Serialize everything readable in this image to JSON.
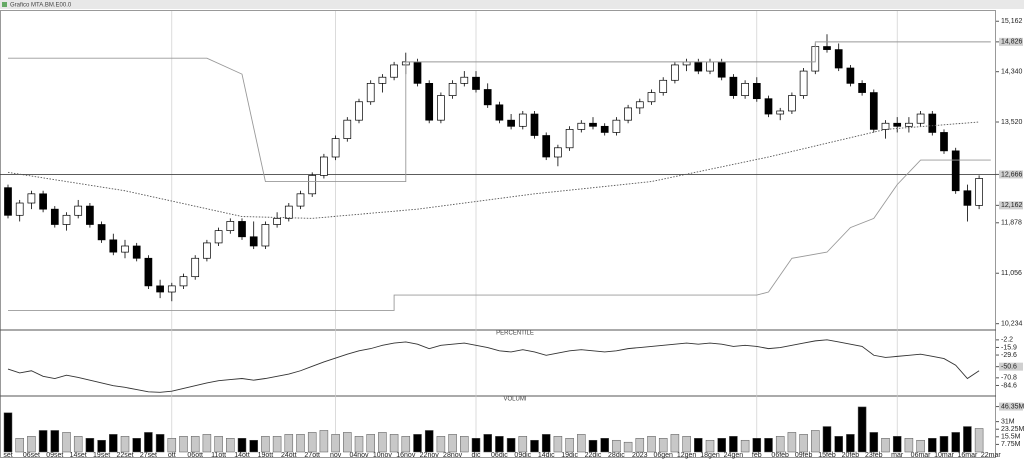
{
  "window": {
    "title": "Grafico MTA.BM.E00.0"
  },
  "chart_data": [
    {
      "type": "candlestick",
      "categories": [
        "set",
        null,
        "06set",
        null,
        "09set",
        null,
        "14set",
        null,
        "19set",
        null,
        "22set",
        null,
        "27set",
        null,
        "ott",
        null,
        "06ott",
        null,
        "11ott",
        null,
        "14ott",
        null,
        "19ott",
        null,
        "24ott",
        null,
        "27ott",
        null,
        "nov",
        null,
        "04nov",
        null,
        "10nov",
        null,
        "16nov",
        null,
        "22nov",
        null,
        "28nov",
        null,
        "dic",
        null,
        "06dic",
        null,
        "09dic",
        null,
        "14dic",
        null,
        "19dic",
        null,
        "22dic",
        null,
        "28dic",
        null,
        "2023",
        null,
        "06gen",
        null,
        "12gen",
        null,
        "18gen",
        null,
        "24gen",
        null,
        "feb",
        null,
        "06feb",
        null,
        "09feb",
        null,
        "15feb",
        null,
        "20feb",
        null,
        "23feb",
        null,
        "mar",
        null,
        "06mar",
        null,
        "10mar",
        null,
        "16mar",
        null,
        "22mar"
      ],
      "open": [
        12450,
        12000,
        12200,
        12350,
        12100,
        11850,
        12000,
        12150,
        11850,
        11600,
        11400,
        11500,
        11300,
        10850,
        10750,
        10850,
        11000,
        11300,
        11550,
        11750,
        11900,
        11650,
        11500,
        11850,
        11950,
        12150,
        12350,
        12650,
        12950,
        13250,
        13550,
        13850,
        14150,
        14250,
        14450,
        14500,
        14150,
        13550,
        13950,
        14150,
        14250,
        14050,
        13800,
        13550,
        13450,
        13650,
        13300,
        12950,
        13100,
        13400,
        13500,
        13450,
        13350,
        13550,
        13750,
        13850,
        14000,
        14200,
        14450,
        14500,
        14350,
        14500,
        14250,
        13950,
        14150,
        13900,
        13650,
        13700,
        13950,
        14350,
        14750,
        14700,
        14400,
        14150,
        14000,
        13400,
        13500,
        13450,
        13500,
        13650,
        13350,
        13050,
        12400,
        12162,
        null
      ],
      "high": [
        12500,
        12250,
        12400,
        12400,
        12150,
        12050,
        12250,
        12200,
        11900,
        11700,
        11600,
        11550,
        11350,
        10950,
        10900,
        11050,
        11350,
        11600,
        11800,
        11950,
        11950,
        11900,
        11900,
        12050,
        12200,
        12400,
        12700,
        13000,
        13300,
        13600,
        13900,
        14200,
        14300,
        14500,
        14650,
        14550,
        14200,
        14000,
        14200,
        14350,
        14350,
        14150,
        13850,
        13650,
        13700,
        13700,
        13350,
        13150,
        13450,
        13550,
        13600,
        13500,
        13600,
        13800,
        13900,
        14050,
        14250,
        14500,
        14550,
        14550,
        14550,
        14550,
        14300,
        14200,
        14250,
        13950,
        13750,
        14000,
        14400,
        14800,
        14950,
        14800,
        14450,
        14200,
        14050,
        13550,
        13600,
        13600,
        13700,
        13700,
        13400,
        13100,
        12500,
        12650,
        null
      ],
      "low": [
        11950,
        11900,
        12100,
        12050,
        11800,
        11750,
        11950,
        11800,
        11550,
        11350,
        11300,
        11250,
        10800,
        10650,
        10600,
        10800,
        10950,
        11250,
        11500,
        11700,
        11600,
        11450,
        11450,
        11800,
        11900,
        12100,
        12300,
        12600,
        12900,
        13200,
        13500,
        13800,
        14000,
        14200,
        14300,
        14100,
        13500,
        13500,
        13900,
        14100,
        14000,
        13750,
        13500,
        13400,
        13400,
        13250,
        12900,
        12800,
        13050,
        13350,
        13400,
        13300,
        13300,
        13500,
        13650,
        13800,
        13950,
        14150,
        14350,
        14300,
        14300,
        14200,
        13900,
        13900,
        13850,
        13600,
        13550,
        13650,
        13900,
        14300,
        14650,
        14350,
        14100,
        13950,
        13350,
        13250,
        13350,
        13350,
        13450,
        13300,
        13000,
        12350,
        11900,
        12100,
        null
      ],
      "close": [
        12000,
        12200,
        12350,
        12100,
        11850,
        12000,
        12150,
        11850,
        11600,
        11400,
        11500,
        11300,
        10850,
        10750,
        10850,
        11000,
        11300,
        11550,
        11750,
        11900,
        11650,
        11500,
        11850,
        11950,
        12150,
        12350,
        12650,
        12950,
        13250,
        13550,
        13850,
        14150,
        14250,
        14450,
        14500,
        14150,
        13550,
        13950,
        14150,
        14250,
        14050,
        13800,
        13550,
        13450,
        13650,
        13300,
        12950,
        13100,
        13400,
        13500,
        13450,
        13350,
        13550,
        13750,
        13850,
        14000,
        14200,
        14450,
        14500,
        14350,
        14500,
        14250,
        13950,
        14150,
        13900,
        13650,
        13700,
        13950,
        14350,
        14750,
        14700,
        14400,
        14150,
        14000,
        13400,
        13500,
        13450,
        13500,
        13650,
        13350,
        13050,
        12400,
        12162,
        12600,
        null
      ],
      "up_color": "#ffffff",
      "down_color": "#000000",
      "lines": [
        {
          "x": [
            0,
            10,
            20,
            26,
            35,
            45,
            55,
            65,
            75,
            83
          ],
          "values": [
            12700,
            12400,
            11980,
            11950,
            12100,
            12350,
            12550,
            12950,
            13400,
            13520
          ],
          "color": "#555555",
          "style": "dotted"
        },
        {
          "x": [
            0,
            17,
            20,
            22,
            24,
            24,
            34,
            34,
            69,
            69,
            84
          ],
          "values": [
            14560,
            14560,
            14300,
            12550,
            12550,
            12550,
            12550,
            14500,
            14500,
            14826,
            14826
          ],
          "color": "#999999",
          "style": "solid"
        },
        {
          "x": [
            0,
            33,
            33,
            64,
            65,
            67,
            70,
            72,
            74,
            76,
            78,
            84
          ],
          "values": [
            10450,
            10450,
            10700,
            10700,
            10750,
            11300,
            11400,
            11800,
            11950,
            12500,
            12900,
            12900
          ],
          "color": "#999999",
          "style": "solid"
        }
      ],
      "ylim": [
        10180,
        15280
      ],
      "yticks": [
        {
          "value": 15162,
          "label": "15,162"
        },
        {
          "value": 14826,
          "label": "14,826",
          "boxed": true
        },
        {
          "value": 14340,
          "label": "14,340"
        },
        {
          "value": 13520,
          "label": "13,520"
        },
        {
          "value": 12666,
          "label": "12,666",
          "boxed": true,
          "line": true
        },
        {
          "value": 12162,
          "label": "12,162",
          "boxed": true
        },
        {
          "value": 11878,
          "label": "11,878"
        },
        {
          "value": 11056,
          "label": "11,056"
        },
        {
          "value": 10234,
          "label": "10,234"
        }
      ]
    },
    {
      "type": "line",
      "title": "PERCENTILE",
      "color": "#333333",
      "values": [
        -55,
        -62,
        -58,
        -68,
        -72,
        -66,
        -70,
        -75,
        -80,
        -85,
        -88,
        -92,
        -96,
        -97,
        -95,
        -90,
        -85,
        -80,
        -76,
        -74,
        -72,
        -75,
        -72,
        -68,
        -64,
        -58,
        -50,
        -42,
        -35,
        -28,
        -22,
        -18,
        -12,
        -8,
        -6,
        -10,
        -18,
        -12,
        -10,
        -8,
        -12,
        -16,
        -22,
        -24,
        -20,
        -24,
        -30,
        -26,
        -22,
        -20,
        -22,
        -24,
        -22,
        -18,
        -16,
        -14,
        -12,
        -10,
        -8,
        -10,
        -8,
        -10,
        -14,
        -12,
        -14,
        -18,
        -16,
        -12,
        -8,
        -4,
        -2,
        -6,
        -10,
        -14,
        -30,
        -34,
        -32,
        -30,
        -28,
        -32,
        -36,
        -48,
        -72,
        -58,
        null
      ],
      "ylim": [
        -100,
        3
      ],
      "yticks": [
        -2.2,
        -15.9,
        -29.6,
        {
          "value": -50.6,
          "label": "-50.6",
          "boxed": true
        },
        -70.8,
        -84.6
      ]
    },
    {
      "type": "bar",
      "title": "VOLUMI",
      "up_color": "#c8c8c8",
      "down_color": "#000000",
      "values": [
        40,
        14,
        16,
        22,
        22,
        20,
        16,
        14,
        12,
        18,
        16,
        14,
        20,
        18,
        14,
        16,
        16,
        18,
        16,
        14,
        14,
        12,
        16,
        16,
        18,
        18,
        20,
        22,
        18,
        20,
        16,
        18,
        20,
        18,
        16,
        18,
        22,
        16,
        18,
        16,
        14,
        18,
        16,
        14,
        16,
        12,
        18,
        16,
        14,
        18,
        12,
        14,
        12,
        10,
        14,
        16,
        14,
        18,
        16,
        14,
        12,
        14,
        16,
        12,
        14,
        14,
        16,
        20,
        18,
        22,
        26,
        16,
        18,
        46,
        20,
        14,
        16,
        14,
        12,
        14,
        16,
        20,
        26,
        24,
        null
      ],
      "ylim": [
        0,
        50
      ],
      "yticks": [
        {
          "value": 46.35,
          "label": "46.35M",
          "boxed": true
        },
        {
          "value": 31,
          "label": "31M"
        },
        {
          "value": 23.25,
          "label": "23.25M"
        },
        {
          "value": 15.5,
          "label": "15.5M"
        },
        {
          "value": 7.75,
          "label": "7.75M"
        }
      ]
    }
  ]
}
